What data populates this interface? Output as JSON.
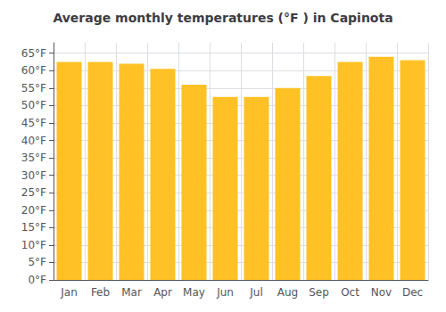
{
  "chart_data": {
    "type": "bar",
    "title": "Average monthly temperatures (°F ) in Capinota",
    "categories": [
      "Jan",
      "Feb",
      "Mar",
      "Apr",
      "May",
      "Jun",
      "Jul",
      "Aug",
      "Sep",
      "Oct",
      "Nov",
      "Dec"
    ],
    "values": [
      62.5,
      62.5,
      62.0,
      60.5,
      56.0,
      52.5,
      52.5,
      55.0,
      58.5,
      62.5,
      64.0,
      63.0
    ],
    "color": "#FFC125",
    "ylim": [
      0,
      68
    ],
    "yticks": [
      {
        "value": 0,
        "label": "0°F"
      },
      {
        "value": 5,
        "label": "5°F"
      },
      {
        "value": 10,
        "label": "10°F"
      },
      {
        "value": 15,
        "label": "15°F"
      },
      {
        "value": 20,
        "label": "20°F"
      },
      {
        "value": 25,
        "label": "25°F"
      },
      {
        "value": 30,
        "label": "30°F"
      },
      {
        "value": 35,
        "label": "35°F"
      },
      {
        "value": 40,
        "label": "40°F"
      },
      {
        "value": 45,
        "label": "45°F"
      },
      {
        "value": 50,
        "label": "50°F"
      },
      {
        "value": 55,
        "label": "55°F"
      },
      {
        "value": 60,
        "label": "60°F"
      },
      {
        "value": 65,
        "label": "65°F"
      }
    ],
    "grid": true
  }
}
